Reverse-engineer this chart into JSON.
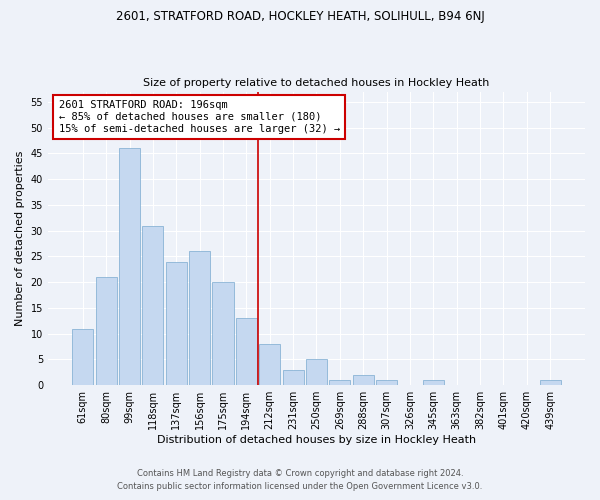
{
  "title1": "2601, STRATFORD ROAD, HOCKLEY HEATH, SOLIHULL, B94 6NJ",
  "title2": "Size of property relative to detached houses in Hockley Heath",
  "xlabel": "Distribution of detached houses by size in Hockley Heath",
  "ylabel": "Number of detached properties",
  "categories": [
    "61sqm",
    "80sqm",
    "99sqm",
    "118sqm",
    "137sqm",
    "156sqm",
    "175sqm",
    "194sqm",
    "212sqm",
    "231sqm",
    "250sqm",
    "269sqm",
    "288sqm",
    "307sqm",
    "326sqm",
    "345sqm",
    "363sqm",
    "382sqm",
    "401sqm",
    "420sqm",
    "439sqm"
  ],
  "values": [
    11,
    21,
    46,
    31,
    24,
    26,
    20,
    13,
    8,
    3,
    5,
    1,
    2,
    1,
    0,
    1,
    0,
    0,
    0,
    0,
    1
  ],
  "bar_color": "#c5d8f0",
  "bar_edge_color": "#7aaad0",
  "vline_x_index": 7.5,
  "vline_color": "#cc0000",
  "annotation_title": "2601 STRATFORD ROAD: 196sqm",
  "annotation_line1": "← 85% of detached houses are smaller (180)",
  "annotation_line2": "15% of semi-detached houses are larger (32) →",
  "annotation_box_color": "#cc0000",
  "ylim": [
    0,
    57
  ],
  "yticks": [
    0,
    5,
    10,
    15,
    20,
    25,
    30,
    35,
    40,
    45,
    50,
    55
  ],
  "footer1": "Contains HM Land Registry data © Crown copyright and database right 2024.",
  "footer2": "Contains public sector information licensed under the Open Government Licence v3.0.",
  "background_color": "#eef2f9",
  "grid_color": "#ffffff",
  "title1_fontsize": 8.5,
  "title2_fontsize": 8.0,
  "xlabel_fontsize": 8.0,
  "ylabel_fontsize": 8.0,
  "tick_fontsize": 7.0,
  "footer_fontsize": 6.0
}
